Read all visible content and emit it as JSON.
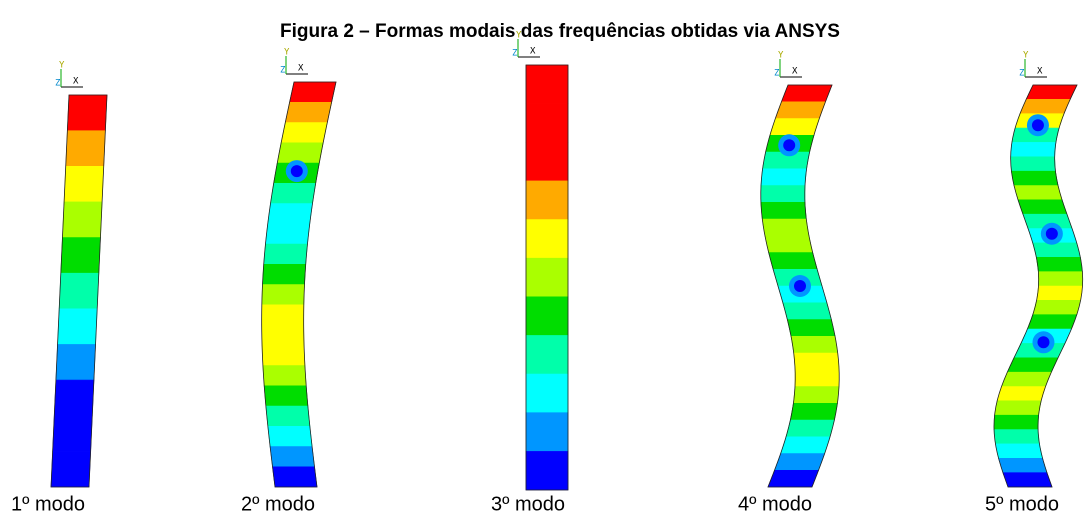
{
  "figure": {
    "title": "Figura 2 – Formas modais das frequências obtidas via ANSYS",
    "panels": [
      {
        "label": "1º modo"
      },
      {
        "label": "2º modo"
      },
      {
        "label": "3º modo"
      },
      {
        "label": "4º modo"
      },
      {
        "label": "5º modo"
      }
    ],
    "axis_labels": {
      "y": "Y",
      "z": "Z",
      "x": "X"
    }
  }
}
